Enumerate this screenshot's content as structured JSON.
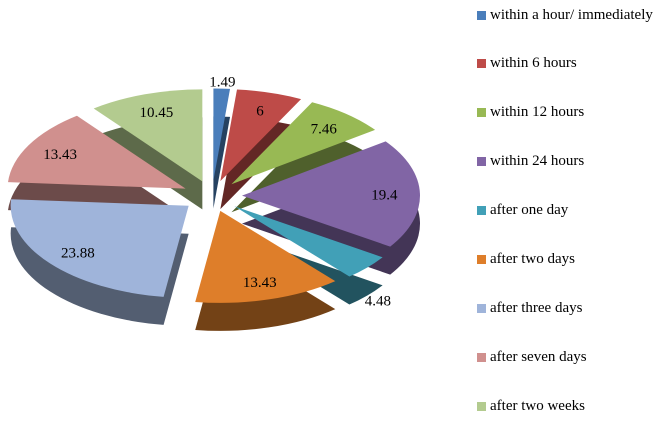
{
  "chart_data": {
    "type": "pie",
    "style": "3d-exploded",
    "title": "",
    "legend_position": "right",
    "label_color": "#000000",
    "background": "#ffffff",
    "slices": [
      {
        "label": "within a hour/ immediately",
        "value": 1.49,
        "display": "1.49",
        "color": "#4A7EBB"
      },
      {
        "label": "within 6 hours",
        "value": 6,
        "display": "6",
        "color": "#BE4B48"
      },
      {
        "label": "within 12 hours",
        "value": 7.46,
        "display": "7.46",
        "color": "#98B954"
      },
      {
        "label": "within 24 hours",
        "value": 19.4,
        "display": "19.4",
        "color": "#8165A5"
      },
      {
        "label": "after one day",
        "value": 4.48,
        "display": "4.48",
        "color": "#41A0B7"
      },
      {
        "label": "after two days",
        "value": 13.43,
        "display": "13.43",
        "color": "#DE7E2A"
      },
      {
        "label": "after three days",
        "value": 23.88,
        "display": "23.88",
        "color": "#9FB4DA"
      },
      {
        "label": "after seven days",
        "value": 13.43,
        "display": "13.43",
        "color": "#D0908E"
      },
      {
        "label": "after two weeks",
        "value": 10.45,
        "display": "10.45",
        "color": "#B3CB8F"
      }
    ]
  }
}
